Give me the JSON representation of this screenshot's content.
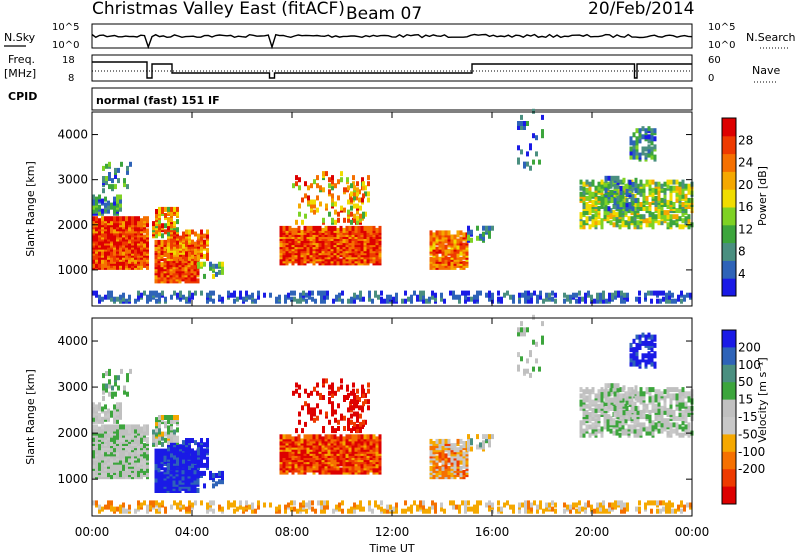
{
  "header": {
    "title": "Christmas Valley East (fitACF)",
    "beam": "Beam 07",
    "date": "20/Feb/2014"
  },
  "strip_labels": {
    "nsky": "N.Sky",
    "nsearch": "N.Search",
    "freq": "Freq.",
    "freq_unit": "[MHz]",
    "nave": "Nave",
    "cpid": "CPID",
    "cpid_value": "normal (fast) 151 IF",
    "noise_ticks": [
      "10^5",
      "10^0"
    ],
    "freq_ticks": [
      "18",
      "8"
    ],
    "nave_ticks": [
      "60",
      "0"
    ]
  },
  "colors": {
    "power_scale": [
      "#1a1ae6",
      "#2e63b8",
      "#4a8f80",
      "#3ca53c",
      "#7ed224",
      "#f0dc00",
      "#f5a800",
      "#f57000",
      "#ee3a00",
      "#dd0000"
    ],
    "velocity_scale": [
      "#1a1ae6",
      "#2e63b8",
      "#4a8f80",
      "#3ca53c",
      "#c0c0c0",
      "#c8c8c8",
      "#f5a800",
      "#f57000",
      "#ee3a00",
      "#dd0000"
    ]
  },
  "chart_data": [
    {
      "type": "heatmap",
      "title": "Power",
      "xlabel": "",
      "ylabel": "Slant Range [km]",
      "x_ticks": [
        "00:00",
        "04:00",
        "08:00",
        "12:00",
        "16:00",
        "20:00",
        "00:00"
      ],
      "y_ticks": [
        1000,
        2000,
        3000,
        4000
      ],
      "ylim": [
        200,
        4500
      ],
      "colorbar": {
        "label": "Power [dB]",
        "ticks": [
          4,
          8,
          12,
          16,
          20,
          24,
          28
        ],
        "range": [
          0,
          32
        ]
      }
    },
    {
      "type": "heatmap",
      "title": "Velocity",
      "xlabel": "Time UT",
      "ylabel": "Slant Range [km]",
      "x_ticks": [
        "00:00",
        "04:00",
        "08:00",
        "12:00",
        "16:00",
        "20:00",
        "00:00"
      ],
      "y_ticks": [
        1000,
        2000,
        3000,
        4000
      ],
      "ylim": [
        200,
        4500
      ],
      "colorbar": {
        "label": "Velocity [m s⁻¹]",
        "ticks": [
          "200",
          "100",
          "50",
          "15",
          "-15",
          "-50",
          "-100",
          "-200"
        ]
      }
    }
  ]
}
